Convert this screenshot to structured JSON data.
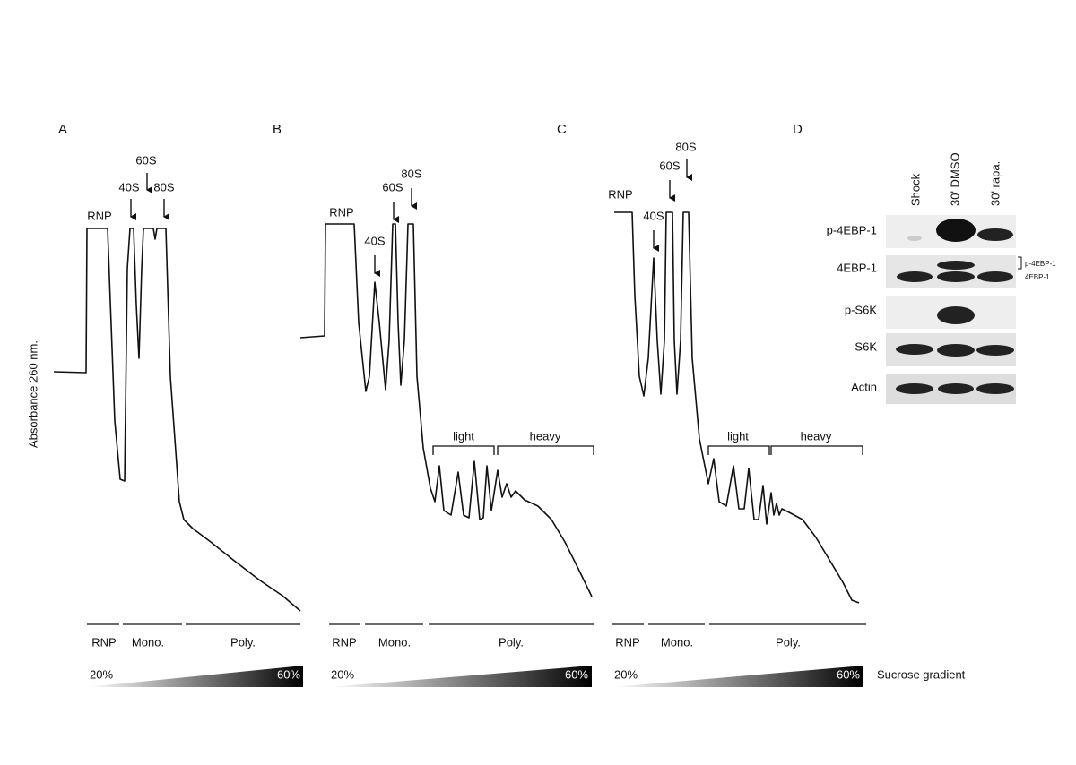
{
  "y_axis_label": "Absorbance 260 nm.",
  "panels": [
    {
      "label": "A",
      "peaks": [
        "RNP",
        "40S",
        "60S",
        "80S"
      ],
      "fractions": [
        "RNP",
        "Mono.",
        "Poly."
      ],
      "gradient": [
        "20%",
        "60%"
      ]
    },
    {
      "label": "B",
      "peaks": [
        "RNP",
        "40S",
        "60S",
        "80S"
      ],
      "brackets": [
        "light",
        "heavy"
      ],
      "fractions": [
        "RNP",
        "Mono.",
        "Poly."
      ],
      "gradient": [
        "20%",
        "60%"
      ]
    },
    {
      "label": "C",
      "peaks": [
        "RNP",
        "40S",
        "60S",
        "80S"
      ],
      "brackets": [
        "light",
        "heavy"
      ],
      "fractions": [
        "RNP",
        "Mono.",
        "Poly."
      ],
      "gradient": [
        "20%",
        "60%"
      ]
    }
  ],
  "gradient_label": "Sucrose gradient",
  "blot": {
    "label": "D",
    "lanes": [
      "Shock",
      "30' DMSO",
      "30' rapa."
    ],
    "rows": [
      "p-4EBP-1",
      "4EBP-1",
      "p-S6K",
      "S6K",
      "Actin"
    ],
    "band_labels": [
      "p-4EBP-1",
      "4EBP-1"
    ]
  }
}
